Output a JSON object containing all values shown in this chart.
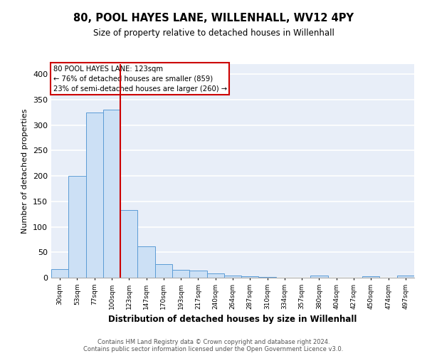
{
  "title": "80, POOL HAYES LANE, WILLENHALL, WV12 4PY",
  "subtitle": "Size of property relative to detached houses in Willenhall",
  "xlabel": "Distribution of detached houses by size in Willenhall",
  "ylabel": "Number of detached properties",
  "bar_color": "#cce0f5",
  "bar_edge_color": "#5b9bd5",
  "redline_bin_index": 4,
  "annotation_line1": "80 POOL HAYES LANE: 123sqm",
  "annotation_line2": "← 76% of detached houses are smaller (859)",
  "annotation_line3": "23% of semi-detached houses are larger (260) →",
  "annotation_color": "#cc0000",
  "bins": [
    "30sqm",
    "53sqm",
    "77sqm",
    "100sqm",
    "123sqm",
    "147sqm",
    "170sqm",
    "193sqm",
    "217sqm",
    "240sqm",
    "264sqm",
    "287sqm",
    "310sqm",
    "334sqm",
    "357sqm",
    "380sqm",
    "404sqm",
    "427sqm",
    "450sqm",
    "474sqm",
    "497sqm"
  ],
  "values": [
    17,
    200,
    325,
    330,
    133,
    62,
    27,
    15,
    14,
    8,
    4,
    3,
    2,
    0,
    0,
    4,
    0,
    0,
    3,
    0,
    4
  ],
  "ylim": [
    0,
    420
  ],
  "yticks": [
    0,
    50,
    100,
    150,
    200,
    250,
    300,
    350,
    400
  ],
  "background_color": "#e8eef8",
  "footer_text": "Contains HM Land Registry data © Crown copyright and database right 2024.\nContains public sector information licensed under the Open Government Licence v3.0.",
  "grid_color": "#ffffff",
  "figsize": [
    6.0,
    5.0
  ],
  "dpi": 100
}
